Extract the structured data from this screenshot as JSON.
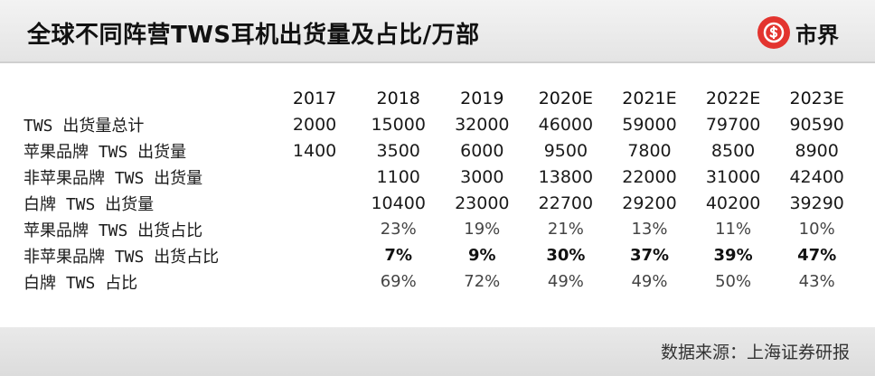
{
  "header": {
    "title": "全球不同阵营TWS耳机出货量及占比/万部",
    "logo_text": "市界",
    "logo_icon": "dollar-circle-icon",
    "logo_color": "#e3342f"
  },
  "table": {
    "columns": [
      "2017",
      "2018",
      "2019",
      "2020E",
      "2021E",
      "2022E",
      "2023E"
    ],
    "rows": [
      {
        "label": "TWS 出货量总计",
        "cells": [
          "2000",
          "15000",
          "32000",
          "46000",
          "59000",
          "79700",
          "90590"
        ]
      },
      {
        "label": "苹果品牌 TWS 出货量",
        "cells": [
          "1400",
          "3500",
          "6000",
          "9500",
          "7800",
          "8500",
          "8900"
        ]
      },
      {
        "label": "非苹果品牌 TWS 出货量",
        "cells": [
          "",
          "1100",
          "3000",
          "13800",
          "22000",
          "31000",
          "42400"
        ]
      },
      {
        "label": "白牌 TWS 出货量",
        "cells": [
          "",
          "10400",
          "23000",
          "22700",
          "29200",
          "40200",
          "39290"
        ]
      },
      {
        "label": "苹果品牌 TWS 出货占比",
        "cells": [
          "",
          "23%",
          "19%",
          "21%",
          "13%",
          "11%",
          "10%"
        ]
      },
      {
        "label": "非苹果品牌 TWS 出货占比",
        "cells": [
          "",
          "7%",
          "9%",
          "30%",
          "37%",
          "39%",
          "47%"
        ]
      },
      {
        "label": "白牌 TWS 占比",
        "cells": [
          "",
          "69%",
          "72%",
          "49%",
          "49%",
          "50%",
          "43%"
        ]
      }
    ]
  },
  "footer": {
    "source": "数据来源：上海证券研报"
  }
}
